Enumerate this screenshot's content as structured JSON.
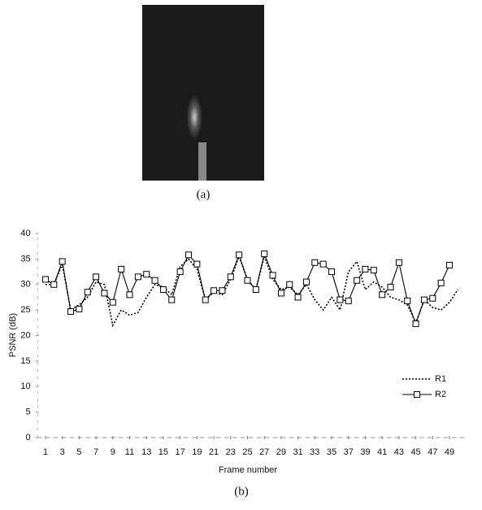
{
  "figure": {
    "panel_a_label": "(a)",
    "panel_b_label": "(b)"
  },
  "chart_data": {
    "type": "line",
    "x_label": "Frame number",
    "y_label": "PSNR (dB)",
    "x": [
      1,
      2,
      3,
      4,
      5,
      6,
      7,
      8,
      9,
      10,
      11,
      12,
      13,
      14,
      15,
      16,
      17,
      18,
      19,
      20,
      21,
      22,
      23,
      24,
      25,
      26,
      27,
      28,
      29,
      30,
      31,
      32,
      33,
      34,
      35,
      36,
      37,
      38,
      39,
      40,
      41,
      42,
      43,
      44,
      45,
      46,
      47,
      48,
      49,
      50
    ],
    "series": [
      {
        "name": "R1",
        "color": "#000000",
        "style": "dotted",
        "marker": "none",
        "values": [
          30,
          30,
          34,
          25,
          26,
          27.5,
          30.5,
          30,
          22,
          25,
          24,
          24.5,
          27.5,
          30,
          29.5,
          28,
          33.5,
          35,
          33,
          27,
          28.5,
          28,
          31,
          35.5,
          31,
          29,
          35.5,
          31,
          29,
          29.5,
          28,
          30,
          27,
          25,
          27.5,
          25,
          32.5,
          34.5,
          29,
          30.5,
          29.5,
          27.5,
          27,
          26,
          22.5,
          27,
          25.5,
          25,
          26.5,
          29
        ]
      },
      {
        "name": "R2",
        "color": "#000000",
        "style": "solid",
        "marker": "square",
        "values": [
          31,
          30,
          34.5,
          24.7,
          25.2,
          28.5,
          31.5,
          28.3,
          26.5,
          33,
          28,
          31.5,
          32,
          30.8,
          29,
          27,
          32.5,
          35.8,
          34,
          27,
          28.8,
          28.8,
          31.5,
          35.8,
          30.8,
          29,
          36,
          31.8,
          28.3,
          30,
          27.5,
          30.5,
          34.3,
          34,
          32.5,
          27,
          26.8,
          30.8,
          33,
          32.8,
          28,
          29.5,
          34.3,
          26.8,
          22.3,
          27,
          27.3,
          30.3,
          33.8,
          null
        ]
      }
    ],
    "xlim": [
      0,
      51
    ],
    "xticks": [
      1,
      3,
      5,
      7,
      9,
      11,
      13,
      15,
      17,
      19,
      21,
      23,
      25,
      27,
      29,
      31,
      33,
      35,
      37,
      39,
      41,
      43,
      45,
      47,
      49
    ],
    "ylim": [
      0,
      40
    ],
    "yticks": [
      0,
      5,
      10,
      15,
      20,
      25,
      30,
      35,
      40
    ],
    "legend": "lower right"
  }
}
